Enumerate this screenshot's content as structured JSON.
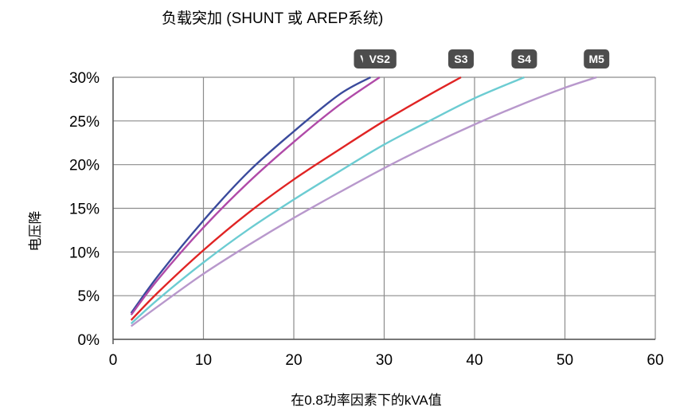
{
  "chart_data": {
    "type": "line",
    "title": "负载突加 (SHUNT 或 AREP系统)",
    "xlabel": "在0.8功率因素下的kVA值",
    "ylabel": "电压降",
    "xlim": [
      0,
      60
    ],
    "ylim": [
      0,
      30
    ],
    "x_ticks": [
      0,
      10,
      20,
      30,
      40,
      50,
      60
    ],
    "y_ticks": [
      0,
      5,
      10,
      15,
      20,
      25,
      30
    ],
    "y_tick_labels": [
      "0%",
      "5%",
      "10%",
      "15%",
      "20%",
      "25%",
      "30%"
    ],
    "grid": true,
    "series": [
      {
        "name": "VS1",
        "color": "#3a4a9c",
        "x": [
          2,
          5,
          10,
          15,
          20,
          25,
          28.5
        ],
        "y": [
          3.0,
          7.3,
          13.6,
          19.2,
          23.8,
          28.0,
          30.0
        ]
      },
      {
        "name": "VS2",
        "color": "#b04aa8",
        "x": [
          2,
          5,
          10,
          15,
          20,
          25,
          29.5
        ],
        "y": [
          2.8,
          6.9,
          12.8,
          18.0,
          22.6,
          26.8,
          30.0
        ]
      },
      {
        "name": "S3",
        "color": "#e02424",
        "x": [
          2,
          5,
          10,
          15,
          20,
          25,
          30,
          35,
          38.5
        ],
        "y": [
          2.2,
          5.4,
          10.2,
          14.5,
          18.3,
          21.7,
          25.0,
          28.0,
          30.0
        ]
      },
      {
        "name": "S4",
        "color": "#6cccd2",
        "x": [
          2,
          5,
          10,
          15,
          20,
          25,
          30,
          35,
          40,
          45.5
        ],
        "y": [
          1.8,
          4.6,
          8.8,
          12.6,
          16.0,
          19.2,
          22.3,
          25.0,
          27.6,
          30.0
        ]
      },
      {
        "name": "M5",
        "color": "#b898cc",
        "x": [
          2,
          5,
          10,
          15,
          20,
          25,
          30,
          35,
          40,
          45,
          50,
          53.5
        ],
        "y": [
          1.5,
          3.8,
          7.5,
          10.8,
          13.9,
          16.8,
          19.6,
          22.2,
          24.6,
          26.8,
          28.8,
          30.0
        ]
      }
    ]
  },
  "badge_color": "#4d4d4d",
  "grid_color": "#8c8c8c"
}
